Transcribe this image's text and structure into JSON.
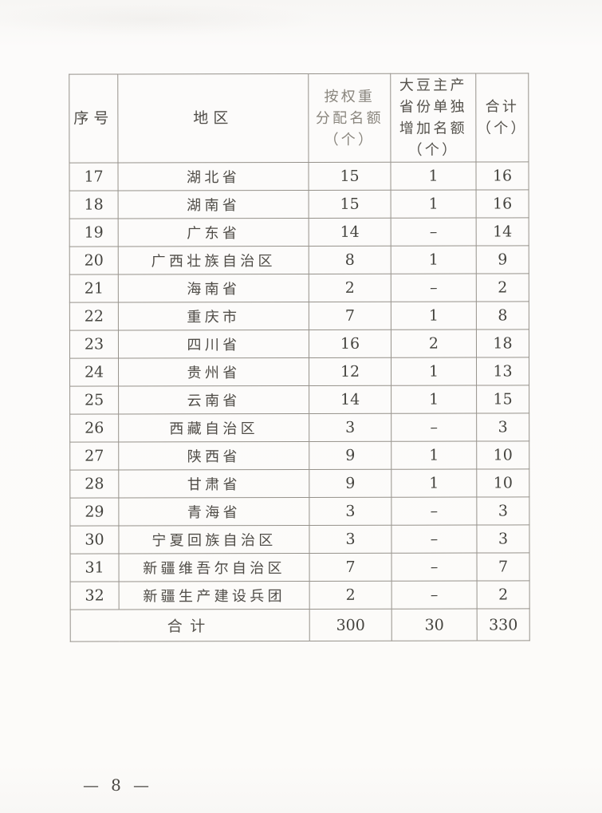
{
  "page": {
    "page_number": "— 8 —"
  },
  "table": {
    "headers": {
      "index": "序号",
      "region": "地区",
      "weight_quota": "按权重\n分配名额\n（个）",
      "soybean_quota": "大豆主产\n省份单独\n增加名额\n（个）",
      "total": "合计\n（个）"
    },
    "rows": [
      {
        "index": "17",
        "region": "湖北省",
        "weight_quota": "15",
        "soybean_quota": "1",
        "total": "16"
      },
      {
        "index": "18",
        "region": "湖南省",
        "weight_quota": "15",
        "soybean_quota": "1",
        "total": "16"
      },
      {
        "index": "19",
        "region": "广东省",
        "weight_quota": "14",
        "soybean_quota": "–",
        "total": "14"
      },
      {
        "index": "20",
        "region": "广西壮族自治区",
        "weight_quota": "8",
        "soybean_quota": "1",
        "total": "9"
      },
      {
        "index": "21",
        "region": "海南省",
        "weight_quota": "2",
        "soybean_quota": "–",
        "total": "2"
      },
      {
        "index": "22",
        "region": "重庆市",
        "weight_quota": "7",
        "soybean_quota": "1",
        "total": "8"
      },
      {
        "index": "23",
        "region": "四川省",
        "weight_quota": "16",
        "soybean_quota": "2",
        "total": "18"
      },
      {
        "index": "24",
        "region": "贵州省",
        "weight_quota": "12",
        "soybean_quota": "1",
        "total": "13"
      },
      {
        "index": "25",
        "region": "云南省",
        "weight_quota": "14",
        "soybean_quota": "1",
        "total": "15"
      },
      {
        "index": "26",
        "region": "西藏自治区",
        "weight_quota": "3",
        "soybean_quota": "–",
        "total": "3"
      },
      {
        "index": "27",
        "region": "陕西省",
        "weight_quota": "9",
        "soybean_quota": "1",
        "total": "10"
      },
      {
        "index": "28",
        "region": "甘肃省",
        "weight_quota": "9",
        "soybean_quota": "1",
        "total": "10"
      },
      {
        "index": "29",
        "region": "青海省",
        "weight_quota": "3",
        "soybean_quota": "–",
        "total": "3"
      },
      {
        "index": "30",
        "region": "宁夏回族自治区",
        "weight_quota": "3",
        "soybean_quota": "–",
        "total": "3"
      },
      {
        "index": "31",
        "region": "新疆维吾尔自治区",
        "weight_quota": "7",
        "soybean_quota": "–",
        "total": "7"
      },
      {
        "index": "32",
        "region": "新疆生产建设兵团",
        "weight_quota": "2",
        "soybean_quota": "–",
        "total": "2"
      }
    ],
    "total_row": {
      "label": "合计",
      "weight_quota": "300",
      "soybean_quota": "30",
      "total": "330"
    }
  },
  "colors": {
    "ink": "#4a4843",
    "faded_ink": "#8a867e",
    "border": "#96928b",
    "paper": "#fbfaf8"
  }
}
